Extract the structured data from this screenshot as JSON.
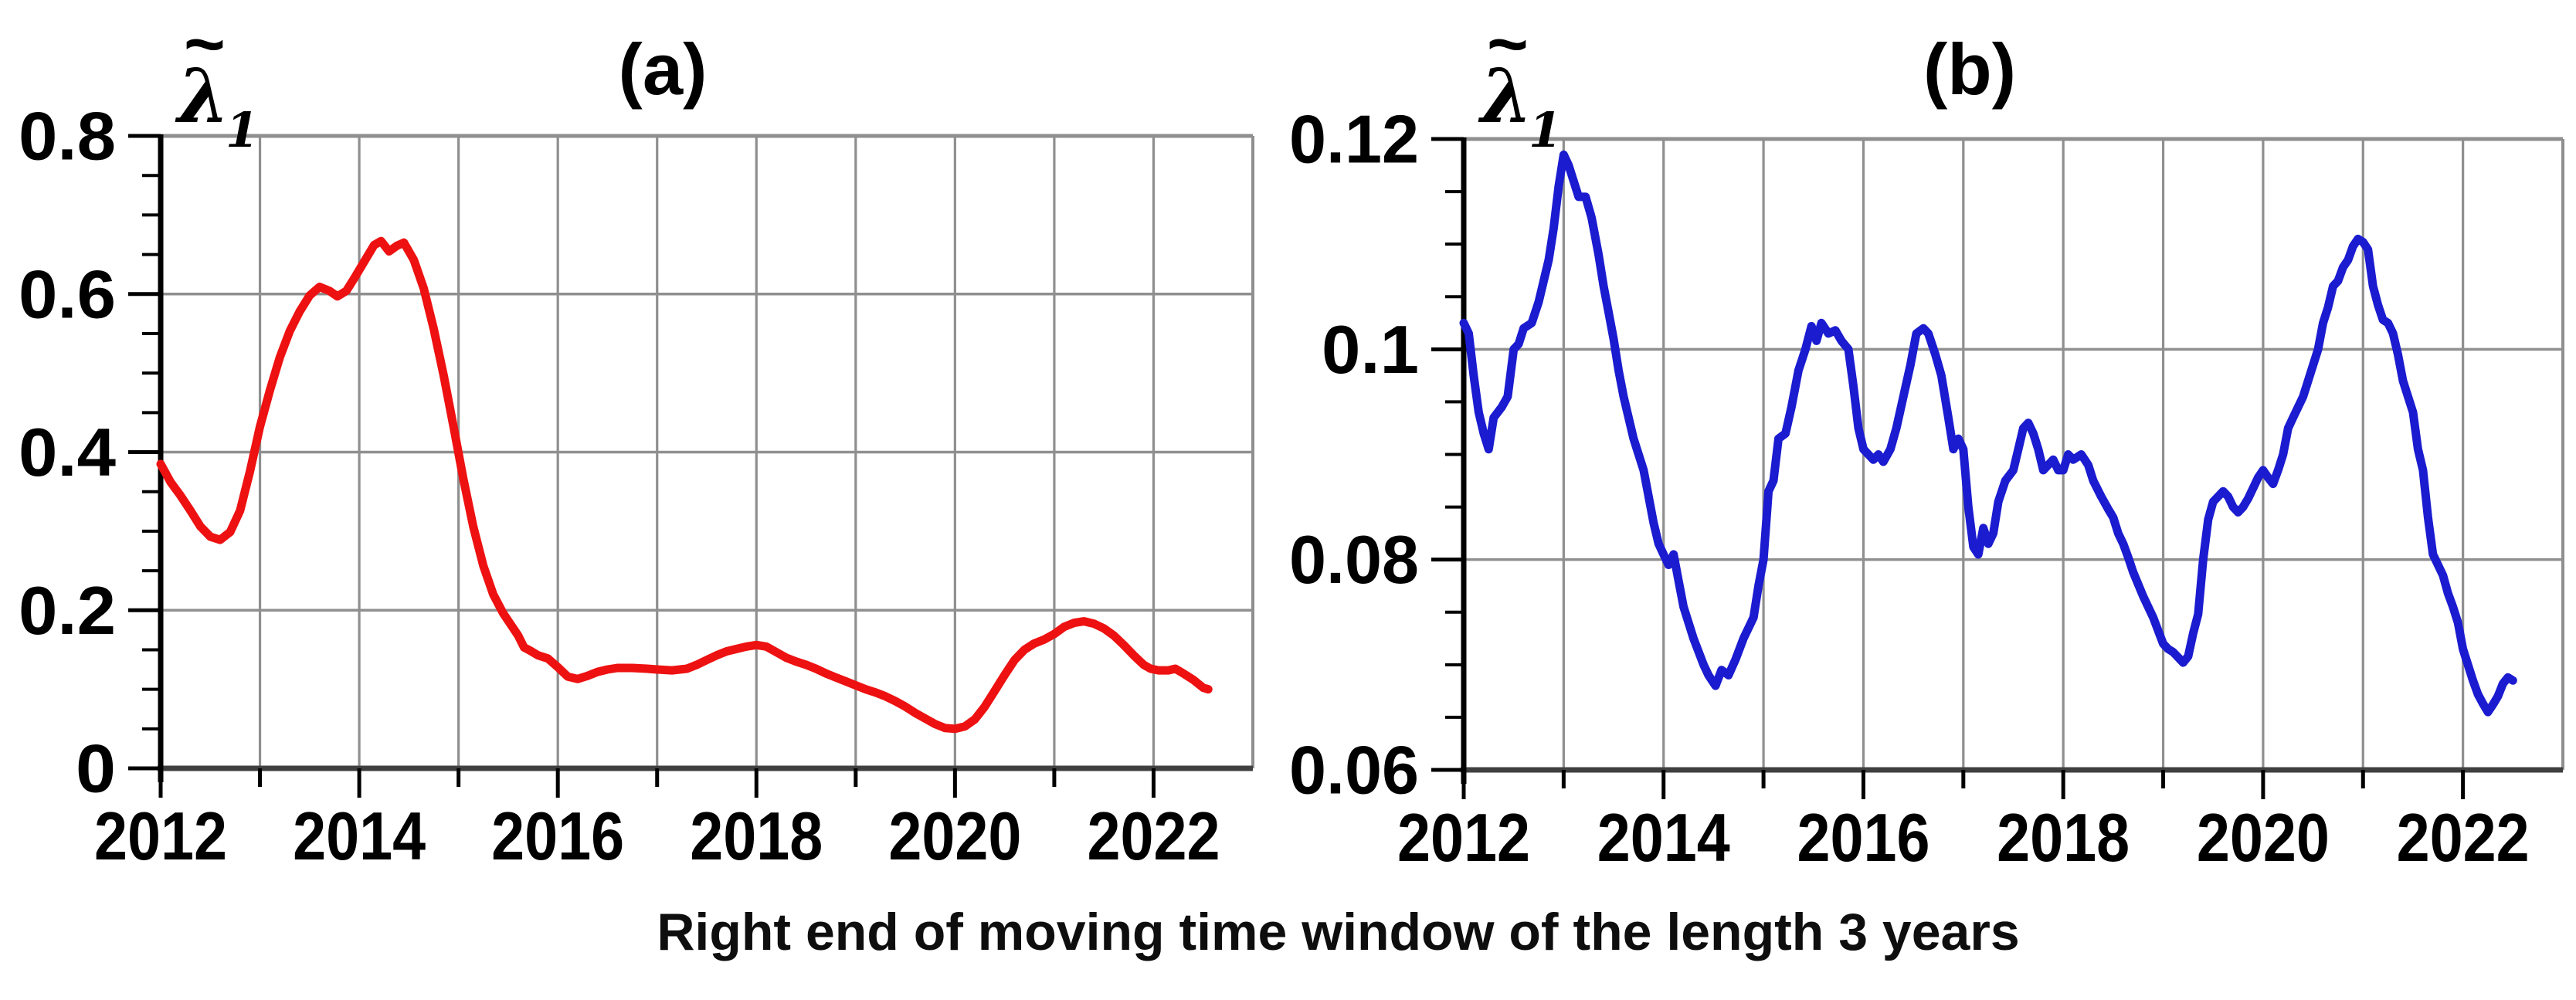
{
  "figure": {
    "caption": "Right end of moving time window of the length 3 years",
    "background": "#ffffff"
  },
  "colors": {
    "grid": "#8f8f8f",
    "frame": "#8f8f8f",
    "baseline": "#3f3f3f",
    "axis": "#000000",
    "red_series": "#ee1111",
    "blue_series": "#1b1bd0"
  },
  "chart_data": [
    {
      "type": "line",
      "panel_label": "(a)",
      "series_name": "λ̃₁",
      "series_label_parts": {
        "base": "λ",
        "tilde": "~",
        "sub": "1"
      },
      "color": "#ee1111",
      "xlim": [
        2012,
        2023
      ],
      "ylim": [
        0,
        0.8
      ],
      "x_grid_step": 1,
      "x_major_ticks": [
        2012,
        2014,
        2016,
        2018,
        2020,
        2022
      ],
      "x_tick_labels": [
        "2012",
        "2014",
        "2016",
        "2018",
        "2020",
        "2022"
      ],
      "y_ticks": [
        {
          "v": 0,
          "label": "0"
        },
        {
          "v": 0.2,
          "label": "0.2"
        },
        {
          "v": 0.4,
          "label": "0.4"
        },
        {
          "v": 0.6,
          "label": "0.6"
        },
        {
          "v": 0.8,
          "label": "0.8"
        }
      ],
      "y_minor_step": 0.05,
      "grid": true,
      "legend_position": "top-left",
      "points": [
        [
          2012.0,
          0.385
        ],
        [
          2012.1,
          0.362
        ],
        [
          2012.2,
          0.345
        ],
        [
          2012.3,
          0.326
        ],
        [
          2012.4,
          0.306
        ],
        [
          2012.5,
          0.293
        ],
        [
          2012.6,
          0.289
        ],
        [
          2012.7,
          0.299
        ],
        [
          2012.8,
          0.326
        ],
        [
          2012.9,
          0.376
        ],
        [
          2013.0,
          0.432
        ],
        [
          2013.1,
          0.478
        ],
        [
          2013.2,
          0.52
        ],
        [
          2013.3,
          0.553
        ],
        [
          2013.4,
          0.578
        ],
        [
          2013.5,
          0.598
        ],
        [
          2013.6,
          0.609
        ],
        [
          2013.7,
          0.604
        ],
        [
          2013.78,
          0.597
        ],
        [
          2013.87,
          0.604
        ],
        [
          2013.95,
          0.62
        ],
        [
          2014.05,
          0.641
        ],
        [
          2014.15,
          0.662
        ],
        [
          2014.22,
          0.667
        ],
        [
          2014.3,
          0.654
        ],
        [
          2014.38,
          0.661
        ],
        [
          2014.45,
          0.665
        ],
        [
          2014.55,
          0.643
        ],
        [
          2014.65,
          0.607
        ],
        [
          2014.75,
          0.556
        ],
        [
          2014.85,
          0.497
        ],
        [
          2014.95,
          0.432
        ],
        [
          2015.05,
          0.365
        ],
        [
          2015.15,
          0.305
        ],
        [
          2015.25,
          0.256
        ],
        [
          2015.35,
          0.22
        ],
        [
          2015.45,
          0.196
        ],
        [
          2015.52,
          0.183
        ],
        [
          2015.6,
          0.168
        ],
        [
          2015.66,
          0.153
        ],
        [
          2015.72,
          0.149
        ],
        [
          2015.8,
          0.143
        ],
        [
          2015.9,
          0.139
        ],
        [
          2016.0,
          0.128
        ],
        [
          2016.1,
          0.116
        ],
        [
          2016.2,
          0.113
        ],
        [
          2016.3,
          0.117
        ],
        [
          2016.4,
          0.122
        ],
        [
          2016.5,
          0.125
        ],
        [
          2016.6,
          0.127
        ],
        [
          2016.75,
          0.127
        ],
        [
          2016.9,
          0.126
        ],
        [
          2017.0,
          0.125
        ],
        [
          2017.15,
          0.124
        ],
        [
          2017.3,
          0.126
        ],
        [
          2017.4,
          0.131
        ],
        [
          2017.5,
          0.137
        ],
        [
          2017.6,
          0.143
        ],
        [
          2017.7,
          0.148
        ],
        [
          2017.8,
          0.151
        ],
        [
          2017.9,
          0.154
        ],
        [
          2018.0,
          0.156
        ],
        [
          2018.1,
          0.154
        ],
        [
          2018.2,
          0.147
        ],
        [
          2018.3,
          0.14
        ],
        [
          2018.4,
          0.135
        ],
        [
          2018.5,
          0.131
        ],
        [
          2018.6,
          0.126
        ],
        [
          2018.7,
          0.12
        ],
        [
          2018.8,
          0.115
        ],
        [
          2018.9,
          0.11
        ],
        [
          2019.0,
          0.105
        ],
        [
          2019.1,
          0.1
        ],
        [
          2019.2,
          0.096
        ],
        [
          2019.3,
          0.091
        ],
        [
          2019.4,
          0.085
        ],
        [
          2019.5,
          0.078
        ],
        [
          2019.6,
          0.07
        ],
        [
          2019.7,
          0.063
        ],
        [
          2019.8,
          0.056
        ],
        [
          2019.9,
          0.051
        ],
        [
          2020.0,
          0.05
        ],
        [
          2020.1,
          0.053
        ],
        [
          2020.2,
          0.062
        ],
        [
          2020.3,
          0.078
        ],
        [
          2020.4,
          0.098
        ],
        [
          2020.5,
          0.118
        ],
        [
          2020.6,
          0.137
        ],
        [
          2020.7,
          0.15
        ],
        [
          2020.8,
          0.158
        ],
        [
          2020.9,
          0.163
        ],
        [
          2021.0,
          0.17
        ],
        [
          2021.1,
          0.179
        ],
        [
          2021.2,
          0.184
        ],
        [
          2021.3,
          0.186
        ],
        [
          2021.4,
          0.183
        ],
        [
          2021.5,
          0.177
        ],
        [
          2021.6,
          0.168
        ],
        [
          2021.7,
          0.156
        ],
        [
          2021.8,
          0.143
        ],
        [
          2021.9,
          0.131
        ],
        [
          2021.97,
          0.126
        ],
        [
          2022.05,
          0.124
        ],
        [
          2022.15,
          0.124
        ],
        [
          2022.22,
          0.126
        ],
        [
          2022.3,
          0.12
        ],
        [
          2022.4,
          0.112
        ],
        [
          2022.5,
          0.102
        ],
        [
          2022.55,
          0.1
        ]
      ]
    },
    {
      "type": "line",
      "panel_label": "(b)",
      "series_name": "λ̃₁",
      "series_label_parts": {
        "base": "λ",
        "tilde": "~",
        "sub": "1"
      },
      "color": "#1b1bd0",
      "xlim": [
        2012,
        2023
      ],
      "ylim": [
        0.06,
        0.12
      ],
      "x_grid_step": 1,
      "x_major_ticks": [
        2012,
        2014,
        2016,
        2018,
        2020,
        2022
      ],
      "x_tick_labels": [
        "2012",
        "2014",
        "2016",
        "2018",
        "2020",
        "2022"
      ],
      "y_ticks": [
        {
          "v": 0.06,
          "label": "0.06"
        },
        {
          "v": 0.08,
          "label": "0.08"
        },
        {
          "v": 0.1,
          "label": "0.1"
        },
        {
          "v": 0.12,
          "label": "0.12"
        }
      ],
      "y_minor_step": 0.005,
      "grid": true,
      "legend_position": "top-left",
      "points": [
        [
          2012.0,
          0.1025
        ],
        [
          2012.05,
          0.1015
        ],
        [
          2012.1,
          0.0975
        ],
        [
          2012.15,
          0.094
        ],
        [
          2012.2,
          0.092
        ],
        [
          2012.25,
          0.0905
        ],
        [
          2012.3,
          0.0935
        ],
        [
          2012.38,
          0.0945
        ],
        [
          2012.44,
          0.0955
        ],
        [
          2012.5,
          0.1
        ],
        [
          2012.55,
          0.1005
        ],
        [
          2012.6,
          0.102
        ],
        [
          2012.68,
          0.1025
        ],
        [
          2012.75,
          0.1045
        ],
        [
          2012.8,
          0.1065
        ],
        [
          2012.85,
          0.1085
        ],
        [
          2012.9,
          0.1115
        ],
        [
          2012.95,
          0.1155
        ],
        [
          2013.0,
          0.1185
        ],
        [
          2013.05,
          0.1175
        ],
        [
          2013.1,
          0.116
        ],
        [
          2013.15,
          0.1145
        ],
        [
          2013.22,
          0.1145
        ],
        [
          2013.28,
          0.1125
        ],
        [
          2013.35,
          0.109
        ],
        [
          2013.4,
          0.106
        ],
        [
          2013.45,
          0.1035
        ],
        [
          2013.5,
          0.101
        ],
        [
          2013.55,
          0.098
        ],
        [
          2013.6,
          0.0955
        ],
        [
          2013.7,
          0.0915
        ],
        [
          2013.8,
          0.0885
        ],
        [
          2013.9,
          0.0835
        ],
        [
          2013.95,
          0.0815
        ],
        [
          2014.0,
          0.0805
        ],
        [
          2014.05,
          0.0795
        ],
        [
          2014.1,
          0.0805
        ],
        [
          2014.15,
          0.078
        ],
        [
          2014.2,
          0.0755
        ],
        [
          2014.3,
          0.0725
        ],
        [
          2014.4,
          0.07
        ],
        [
          2014.45,
          0.069
        ],
        [
          2014.52,
          0.068
        ],
        [
          2014.58,
          0.0695
        ],
        [
          2014.65,
          0.069
        ],
        [
          2014.72,
          0.0705
        ],
        [
          2014.8,
          0.0725
        ],
        [
          2014.9,
          0.0745
        ],
        [
          2014.95,
          0.0775
        ],
        [
          2015.0,
          0.08
        ],
        [
          2015.05,
          0.0865
        ],
        [
          2015.1,
          0.0875
        ],
        [
          2015.15,
          0.0915
        ],
        [
          2015.22,
          0.092
        ],
        [
          2015.28,
          0.0945
        ],
        [
          2015.35,
          0.098
        ],
        [
          2015.42,
          0.1
        ],
        [
          2015.48,
          0.1022
        ],
        [
          2015.53,
          0.1008
        ],
        [
          2015.58,
          0.1025
        ],
        [
          2015.65,
          0.1015
        ],
        [
          2015.72,
          0.1018
        ],
        [
          2015.78,
          0.1008
        ],
        [
          2015.85,
          0.1
        ],
        [
          2015.9,
          0.0965
        ],
        [
          2015.95,
          0.0925
        ],
        [
          2016.0,
          0.0905
        ],
        [
          2016.05,
          0.09
        ],
        [
          2016.1,
          0.0895
        ],
        [
          2016.15,
          0.09
        ],
        [
          2016.2,
          0.0893
        ],
        [
          2016.27,
          0.0905
        ],
        [
          2016.33,
          0.0925
        ],
        [
          2016.4,
          0.0955
        ],
        [
          2016.47,
          0.0985
        ],
        [
          2016.53,
          0.1015
        ],
        [
          2016.6,
          0.102
        ],
        [
          2016.65,
          0.1015
        ],
        [
          2016.72,
          0.0995
        ],
        [
          2016.78,
          0.0975
        ],
        [
          2016.85,
          0.0935
        ],
        [
          2016.9,
          0.0905
        ],
        [
          2016.95,
          0.0915
        ],
        [
          2017.0,
          0.0905
        ],
        [
          2017.05,
          0.085
        ],
        [
          2017.1,
          0.0812
        ],
        [
          2017.15,
          0.0805
        ],
        [
          2017.2,
          0.083
        ],
        [
          2017.25,
          0.0815
        ],
        [
          2017.3,
          0.0825
        ],
        [
          2017.35,
          0.0855
        ],
        [
          2017.42,
          0.0875
        ],
        [
          2017.5,
          0.0885
        ],
        [
          2017.55,
          0.0905
        ],
        [
          2017.6,
          0.0925
        ],
        [
          2017.65,
          0.093
        ],
        [
          2017.7,
          0.092
        ],
        [
          2017.75,
          0.0905
        ],
        [
          2017.8,
          0.0885
        ],
        [
          2017.85,
          0.089
        ],
        [
          2017.9,
          0.0895
        ],
        [
          2017.95,
          0.0885
        ],
        [
          2018.0,
          0.0885
        ],
        [
          2018.05,
          0.09
        ],
        [
          2018.1,
          0.0895
        ],
        [
          2018.18,
          0.09
        ],
        [
          2018.25,
          0.089
        ],
        [
          2018.3,
          0.0875
        ],
        [
          2018.38,
          0.086
        ],
        [
          2018.45,
          0.0848
        ],
        [
          2018.5,
          0.084
        ],
        [
          2018.55,
          0.0825
        ],
        [
          2018.6,
          0.0815
        ],
        [
          2018.65,
          0.0802
        ],
        [
          2018.7,
          0.0788
        ],
        [
          2018.8,
          0.0765
        ],
        [
          2018.9,
          0.0745
        ],
        [
          2019.0,
          0.072
        ],
        [
          2019.05,
          0.0715
        ],
        [
          2019.1,
          0.0712
        ],
        [
          2019.15,
          0.0707
        ],
        [
          2019.2,
          0.0702
        ],
        [
          2019.25,
          0.0708
        ],
        [
          2019.3,
          0.073
        ],
        [
          2019.35,
          0.0748
        ],
        [
          2019.4,
          0.08
        ],
        [
          2019.45,
          0.0838
        ],
        [
          2019.5,
          0.0855
        ],
        [
          2019.55,
          0.086
        ],
        [
          2019.6,
          0.0865
        ],
        [
          2019.65,
          0.086
        ],
        [
          2019.7,
          0.085
        ],
        [
          2019.75,
          0.0845
        ],
        [
          2019.8,
          0.085
        ],
        [
          2019.85,
          0.0858
        ],
        [
          2019.9,
          0.0868
        ],
        [
          2019.95,
          0.0878
        ],
        [
          2020.0,
          0.0885
        ],
        [
          2020.05,
          0.0878
        ],
        [
          2020.1,
          0.0872
        ],
        [
          2020.15,
          0.0885
        ],
        [
          2020.2,
          0.09
        ],
        [
          2020.25,
          0.0925
        ],
        [
          2020.3,
          0.0935
        ],
        [
          2020.4,
          0.0955
        ],
        [
          2020.5,
          0.0985
        ],
        [
          2020.55,
          0.1
        ],
        [
          2020.6,
          0.1025
        ],
        [
          2020.65,
          0.104
        ],
        [
          2020.7,
          0.106
        ],
        [
          2020.75,
          0.1065
        ],
        [
          2020.8,
          0.1078
        ],
        [
          2020.85,
          0.1085
        ],
        [
          2020.9,
          0.1098
        ],
        [
          2020.95,
          0.1105
        ],
        [
          2021.0,
          0.1102
        ],
        [
          2021.05,
          0.1095
        ],
        [
          2021.1,
          0.106
        ],
        [
          2021.15,
          0.1042
        ],
        [
          2021.2,
          0.1028
        ],
        [
          2021.25,
          0.1025
        ],
        [
          2021.3,
          0.1015
        ],
        [
          2021.35,
          0.0995
        ],
        [
          2021.4,
          0.097
        ],
        [
          2021.45,
          0.0955
        ],
        [
          2021.5,
          0.094
        ],
        [
          2021.55,
          0.0905
        ],
        [
          2021.6,
          0.0885
        ],
        [
          2021.65,
          0.084
        ],
        [
          2021.7,
          0.0805
        ],
        [
          2021.75,
          0.0795
        ],
        [
          2021.8,
          0.0785
        ],
        [
          2021.85,
          0.0768
        ],
        [
          2021.9,
          0.0755
        ],
        [
          2021.95,
          0.074
        ],
        [
          2022.0,
          0.0715
        ],
        [
          2022.05,
          0.07
        ],
        [
          2022.1,
          0.0685
        ],
        [
          2022.15,
          0.0672
        ],
        [
          2022.2,
          0.0663
        ],
        [
          2022.25,
          0.0655
        ],
        [
          2022.3,
          0.0662
        ],
        [
          2022.35,
          0.067
        ],
        [
          2022.4,
          0.0682
        ],
        [
          2022.45,
          0.0688
        ],
        [
          2022.5,
          0.0685
        ]
      ]
    }
  ]
}
